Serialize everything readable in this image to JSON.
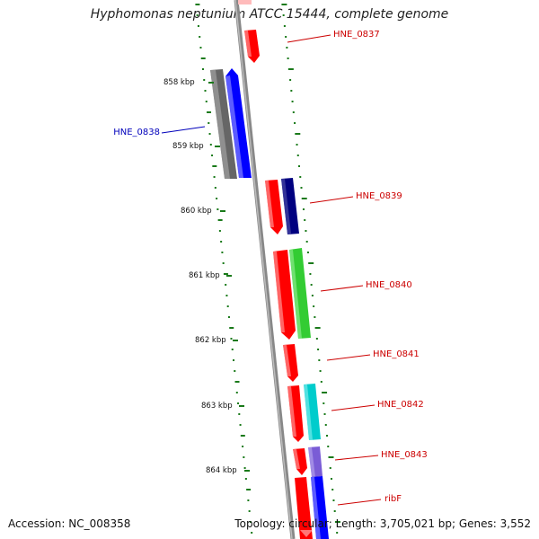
{
  "title": "Hyphomonas neptunium ATCC 15444, complete genome",
  "accession": "Accession: NC_008358",
  "summary": "Topology: circular; Length: 3,705,021 bp; Genes: 3,552",
  "ticks": [
    "858 kbp",
    "859 kbp",
    "860 kbp",
    "861 kbp",
    "862 kbp",
    "863 kbp",
    "864 kbp"
  ],
  "gene_labels": [
    {
      "text": "HNE_0837",
      "color": "#cc0000"
    },
    {
      "text": "HNE_0838",
      "color": "#0000bb"
    },
    {
      "text": "HNE_0839",
      "color": "#cc0000"
    },
    {
      "text": "HNE_0840",
      "color": "#cc0000"
    },
    {
      "text": "HNE_0841",
      "color": "#cc0000"
    },
    {
      "text": "HNE_0842",
      "color": "#cc0000"
    },
    {
      "text": "HNE_0843",
      "color": "#cc0000"
    },
    {
      "text": "ribF",
      "color": "#cc0000"
    }
  ],
  "colors": {
    "backbone": "#888888",
    "dots": "#1a7a1a",
    "red": "#ff0000",
    "blue": "#0000ff",
    "navy": "#000080",
    "gray": "#666666",
    "green": "#33cc33",
    "cyan": "#00cccc",
    "violet": "#7a5cd6"
  }
}
